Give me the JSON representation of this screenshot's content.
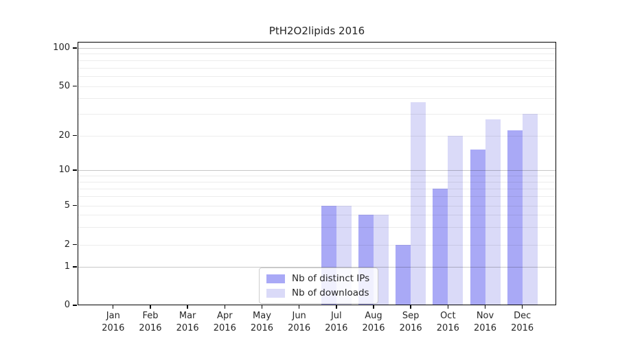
{
  "chart_data": {
    "type": "bar",
    "title": "PtH2O2lipids 2016",
    "categories": [
      {
        "month": "Jan",
        "year": "2016"
      },
      {
        "month": "Feb",
        "year": "2016"
      },
      {
        "month": "Mar",
        "year": "2016"
      },
      {
        "month": "Apr",
        "year": "2016"
      },
      {
        "month": "May",
        "year": "2016"
      },
      {
        "month": "Jun",
        "year": "2016"
      },
      {
        "month": "Jul",
        "year": "2016"
      },
      {
        "month": "Aug",
        "year": "2016"
      },
      {
        "month": "Sep",
        "year": "2016"
      },
      {
        "month": "Oct",
        "year": "2016"
      },
      {
        "month": "Nov",
        "year": "2016"
      },
      {
        "month": "Dec",
        "year": "2016"
      }
    ],
    "series": [
      {
        "name": "Nb of distinct IPs",
        "color": "#a9a9f6",
        "values": [
          0,
          0,
          0,
          0,
          0,
          0,
          5,
          4,
          2,
          7,
          15,
          22
        ]
      },
      {
        "name": "Nb of downloads",
        "color": "#dadaf8",
        "values": [
          0,
          0,
          0,
          0,
          0,
          0,
          5,
          4,
          37,
          20,
          27,
          30
        ]
      }
    ],
    "y_ticks": [
      0,
      1,
      2,
      5,
      10,
      20,
      50,
      100
    ],
    "y_scale": "log above 1, linear 0-1",
    "ylim": [
      0,
      110
    ],
    "grid": "horizontal",
    "legend_position": "inside-bottom-center"
  }
}
